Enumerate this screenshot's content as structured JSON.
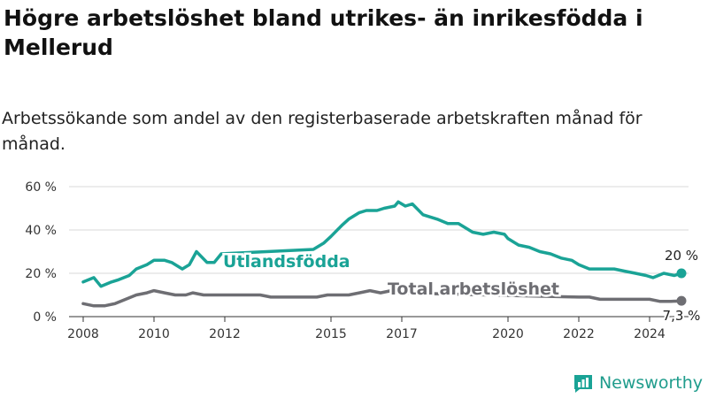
{
  "header": {
    "title": "Högre arbetslöshet bland utrikes- än inrikesfödda i Mellerud",
    "subtitle": "Arbetssökande som andel av den registerbaserade arbetskraften månad för månad."
  },
  "brand": {
    "name": "Newsworthy"
  },
  "colors": {
    "foreign": "#1aa396",
    "total": "#6e6e73",
    "grid": "#d9d9d9",
    "axis": "#333333"
  },
  "chart_data": {
    "type": "line",
    "ylim": [
      0,
      60
    ],
    "xlim": [
      2007.6,
      2025.1
    ],
    "y_ticks": [
      {
        "value": 0,
        "label": "0 %"
      },
      {
        "value": 20,
        "label": "20 %"
      },
      {
        "value": 40,
        "label": "40 %"
      },
      {
        "value": 60,
        "label": "60 %"
      }
    ],
    "x_ticks": [
      {
        "value": 2008,
        "label": "2008"
      },
      {
        "value": 2010,
        "label": "2010"
      },
      {
        "value": 2012,
        "label": "2012"
      },
      {
        "value": 2015,
        "label": "2015"
      },
      {
        "value": 2017,
        "label": "2017"
      },
      {
        "value": 2020,
        "label": "2020"
      },
      {
        "value": 2022,
        "label": "2022"
      },
      {
        "value": 2024,
        "label": "2024"
      }
    ],
    "grid": true,
    "series": [
      {
        "name": "Utlandsfödda",
        "end_label": "20 %",
        "points": [
          [
            2008.0,
            16
          ],
          [
            2008.3,
            18
          ],
          [
            2008.5,
            14
          ],
          [
            2008.8,
            16
          ],
          [
            2009.0,
            17
          ],
          [
            2009.3,
            19
          ],
          [
            2009.5,
            22
          ],
          [
            2009.8,
            24
          ],
          [
            2010.0,
            26
          ],
          [
            2010.3,
            26
          ],
          [
            2010.5,
            25
          ],
          [
            2010.8,
            22
          ],
          [
            2011.0,
            24
          ],
          [
            2011.2,
            30
          ],
          [
            2011.5,
            25
          ],
          [
            2011.7,
            25
          ],
          [
            2011.9,
            29
          ],
          [
            2014.5,
            31
          ],
          [
            2014.8,
            34
          ],
          [
            2015.0,
            37
          ],
          [
            2015.3,
            42
          ],
          [
            2015.5,
            45
          ],
          [
            2015.8,
            48
          ],
          [
            2016.0,
            49
          ],
          [
            2016.3,
            49
          ],
          [
            2016.5,
            50
          ],
          [
            2016.8,
            51
          ],
          [
            2016.9,
            53
          ],
          [
            2017.1,
            51
          ],
          [
            2017.3,
            52
          ],
          [
            2017.6,
            47
          ],
          [
            2018.0,
            45
          ],
          [
            2018.3,
            43
          ],
          [
            2018.6,
            43
          ],
          [
            2019.0,
            39
          ],
          [
            2019.3,
            38
          ],
          [
            2019.6,
            39
          ],
          [
            2019.9,
            38
          ],
          [
            2020.0,
            36
          ],
          [
            2020.3,
            33
          ],
          [
            2020.6,
            32
          ],
          [
            2020.9,
            30
          ],
          [
            2021.2,
            29
          ],
          [
            2021.5,
            27
          ],
          [
            2021.8,
            26
          ],
          [
            2022.0,
            24
          ],
          [
            2022.3,
            22
          ],
          [
            2022.6,
            22
          ],
          [
            2023.0,
            22
          ],
          [
            2023.3,
            21
          ],
          [
            2023.6,
            20
          ],
          [
            2023.9,
            19
          ],
          [
            2024.1,
            18
          ],
          [
            2024.4,
            20
          ],
          [
            2024.7,
            19
          ],
          [
            2024.9,
            20
          ]
        ]
      },
      {
        "name": "Total arbetslöshet",
        "end_label": "7,3 %",
        "points": [
          [
            2008.0,
            6
          ],
          [
            2008.3,
            5
          ],
          [
            2008.6,
            5
          ],
          [
            2008.9,
            6
          ],
          [
            2009.2,
            8
          ],
          [
            2009.5,
            10
          ],
          [
            2009.8,
            11
          ],
          [
            2010.0,
            12
          ],
          [
            2010.3,
            11
          ],
          [
            2010.6,
            10
          ],
          [
            2010.9,
            10
          ],
          [
            2011.1,
            11
          ],
          [
            2011.4,
            10
          ],
          [
            2011.7,
            10
          ],
          [
            2012.0,
            10
          ],
          [
            2012.3,
            10
          ],
          [
            2012.6,
            10
          ],
          [
            2013.0,
            10
          ],
          [
            2013.3,
            9
          ],
          [
            2013.6,
            9
          ],
          [
            2014.0,
            9
          ],
          [
            2014.3,
            9
          ],
          [
            2014.6,
            9
          ],
          [
            2014.9,
            10
          ],
          [
            2015.2,
            10
          ],
          [
            2015.5,
            10
          ],
          [
            2015.8,
            11
          ],
          [
            2016.1,
            12
          ],
          [
            2016.4,
            11
          ],
          [
            2016.7,
            12
          ],
          [
            2016.9,
            11
          ],
          [
            2022.0,
            9
          ],
          [
            2022.3,
            9
          ],
          [
            2022.6,
            8
          ],
          [
            2023.0,
            8
          ],
          [
            2023.3,
            8
          ],
          [
            2023.6,
            8
          ],
          [
            2024.0,
            8
          ],
          [
            2024.3,
            7
          ],
          [
            2024.6,
            7
          ],
          [
            2024.9,
            7.3
          ]
        ]
      }
    ]
  }
}
